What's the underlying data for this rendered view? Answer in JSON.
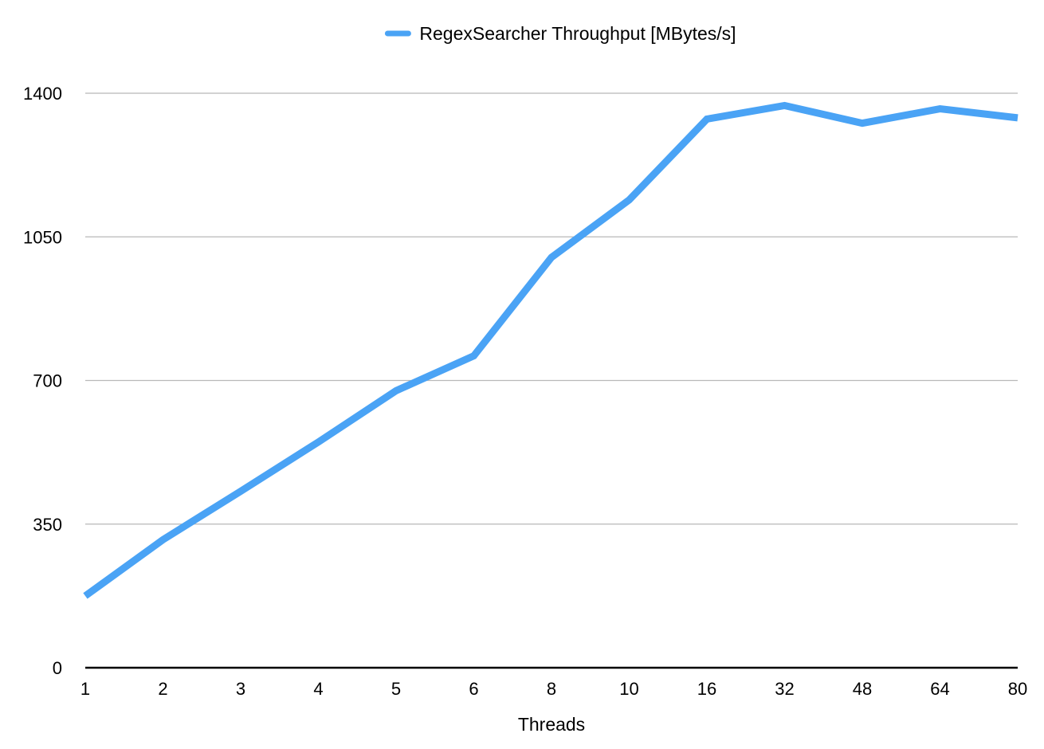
{
  "chart_data": {
    "type": "line",
    "categories": [
      "1",
      "2",
      "3",
      "4",
      "5",
      "6",
      "8",
      "10",
      "16",
      "32",
      "48",
      "64",
      "80"
    ],
    "series": [
      {
        "name": "RegexSearcher Throughput [MBytes/s]",
        "values": [
          175,
          312,
          430,
          550,
          675,
          760,
          1000,
          1140,
          1337,
          1370,
          1327,
          1362,
          1340
        ],
        "color": "#4aa3f5"
      }
    ],
    "title": "",
    "xlabel": "Threads",
    "ylabel": "",
    "ylim": [
      0,
      1400
    ],
    "yticks": [
      "0",
      "350",
      "700",
      "1050",
      "1400"
    ],
    "grid": true,
    "legend_position": "top-center"
  }
}
